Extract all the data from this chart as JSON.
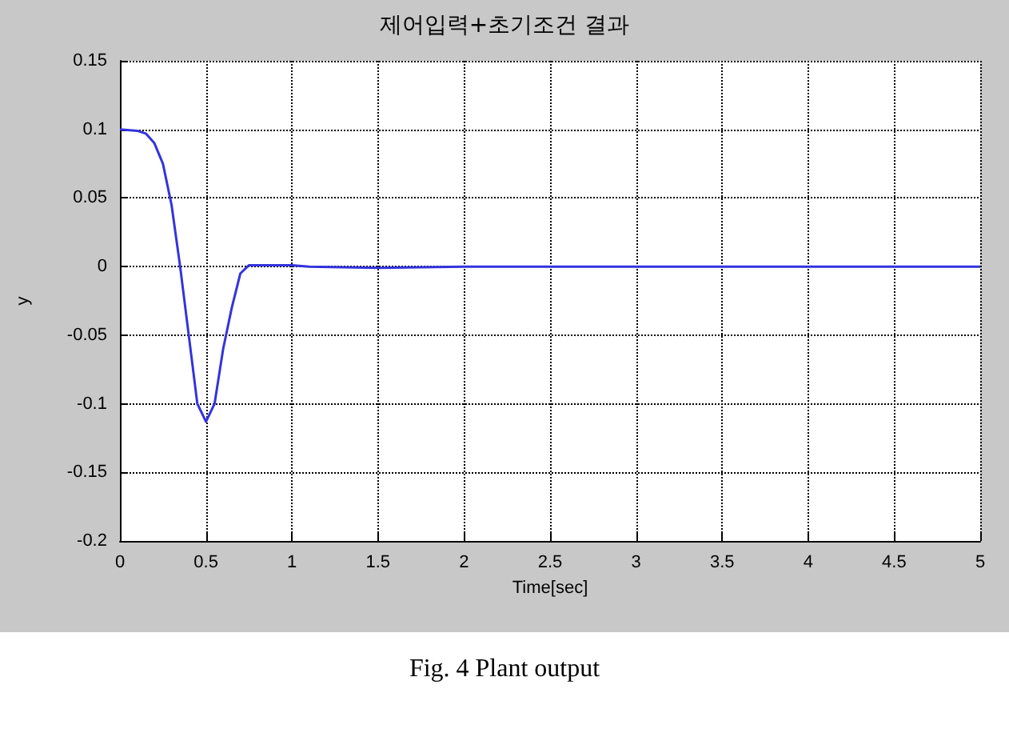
{
  "chart_data": {
    "type": "line",
    "title": "제어입력+초기조건 결과",
    "xlabel": "Time[sec]",
    "ylabel": "y",
    "annotations": [
      "Fig. 4 Plant output"
    ],
    "series": [
      {
        "color": "#3333dd",
        "x": [
          0,
          0.1,
          0.15,
          0.2,
          0.25,
          0.3,
          0.35,
          0.4,
          0.45,
          0.5,
          0.55,
          0.6,
          0.65,
          0.7,
          0.75,
          0.9,
          1,
          1.1,
          1.5,
          2,
          3,
          4,
          5
        ],
        "values": [
          0.1,
          0.099,
          0.097,
          0.09,
          0.075,
          0.045,
          0.0,
          -0.05,
          -0.1,
          -0.113,
          -0.1,
          -0.06,
          -0.03,
          -0.005,
          0.001,
          0.001,
          0.001,
          0,
          -0.001,
          0,
          0,
          0,
          0
        ]
      }
    ],
    "xlim": [
      0,
      5
    ],
    "xticks": [
      0,
      0.5,
      1,
      1.5,
      2,
      2.5,
      3,
      3.5,
      4,
      4.5,
      5
    ],
    "ylim": [
      -0.2,
      0.15
    ],
    "yticks": [
      -0.2,
      -0.15,
      -0.1,
      -0.05,
      0,
      0.05,
      0.1,
      0.15
    ],
    "grid": true,
    "line_style": "solid",
    "marker": "none"
  }
}
